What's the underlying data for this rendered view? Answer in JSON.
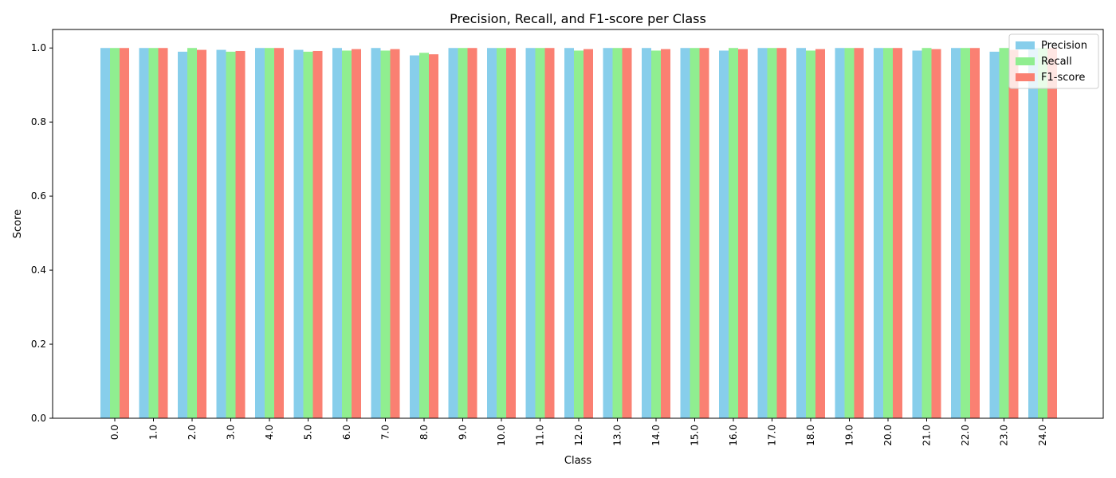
{
  "chart_data": {
    "type": "bar",
    "title": "Precision, Recall, and F1-score per Class",
    "xlabel": "Class",
    "ylabel": "Score",
    "ylim": [
      0,
      1.05
    ],
    "yticks": [
      "0.0",
      "0.2",
      "0.4",
      "0.6",
      "0.8",
      "1.0"
    ],
    "grid": false,
    "legend_position": "top-right",
    "categories": [
      "0.0",
      "1.0",
      "2.0",
      "3.0",
      "4.0",
      "5.0",
      "6.0",
      "7.0",
      "8.0",
      "9.0",
      "10.0",
      "11.0",
      "12.0",
      "13.0",
      "14.0",
      "15.0",
      "16.0",
      "17.0",
      "18.0",
      "19.0",
      "20.0",
      "21.0",
      "22.0",
      "23.0",
      "24.0"
    ],
    "series": [
      {
        "name": "Precision",
        "color": "#87CEEB",
        "values": [
          1.0,
          1.0,
          0.99,
          0.995,
          1.0,
          0.995,
          1.0,
          1.0,
          0.98,
          1.0,
          1.0,
          1.0,
          1.0,
          1.0,
          1.0,
          1.0,
          0.993,
          1.0,
          1.0,
          1.0,
          1.0,
          0.993,
          1.0,
          0.99,
          1.0
        ]
      },
      {
        "name": "Recall",
        "color": "#90EE90",
        "values": [
          1.0,
          1.0,
          1.0,
          0.99,
          1.0,
          0.99,
          0.993,
          0.993,
          0.987,
          1.0,
          1.0,
          1.0,
          0.993,
          1.0,
          0.993,
          1.0,
          1.0,
          1.0,
          0.993,
          1.0,
          1.0,
          1.0,
          1.0,
          1.0,
          1.0
        ]
      },
      {
        "name": "F1-score",
        "color": "#FA8072",
        "values": [
          1.0,
          1.0,
          0.995,
          0.992,
          1.0,
          0.992,
          0.997,
          0.997,
          0.983,
          1.0,
          1.0,
          1.0,
          0.997,
          1.0,
          0.997,
          1.0,
          0.997,
          1.0,
          0.997,
          1.0,
          1.0,
          0.997,
          1.0,
          0.995,
          1.0
        ]
      }
    ]
  }
}
